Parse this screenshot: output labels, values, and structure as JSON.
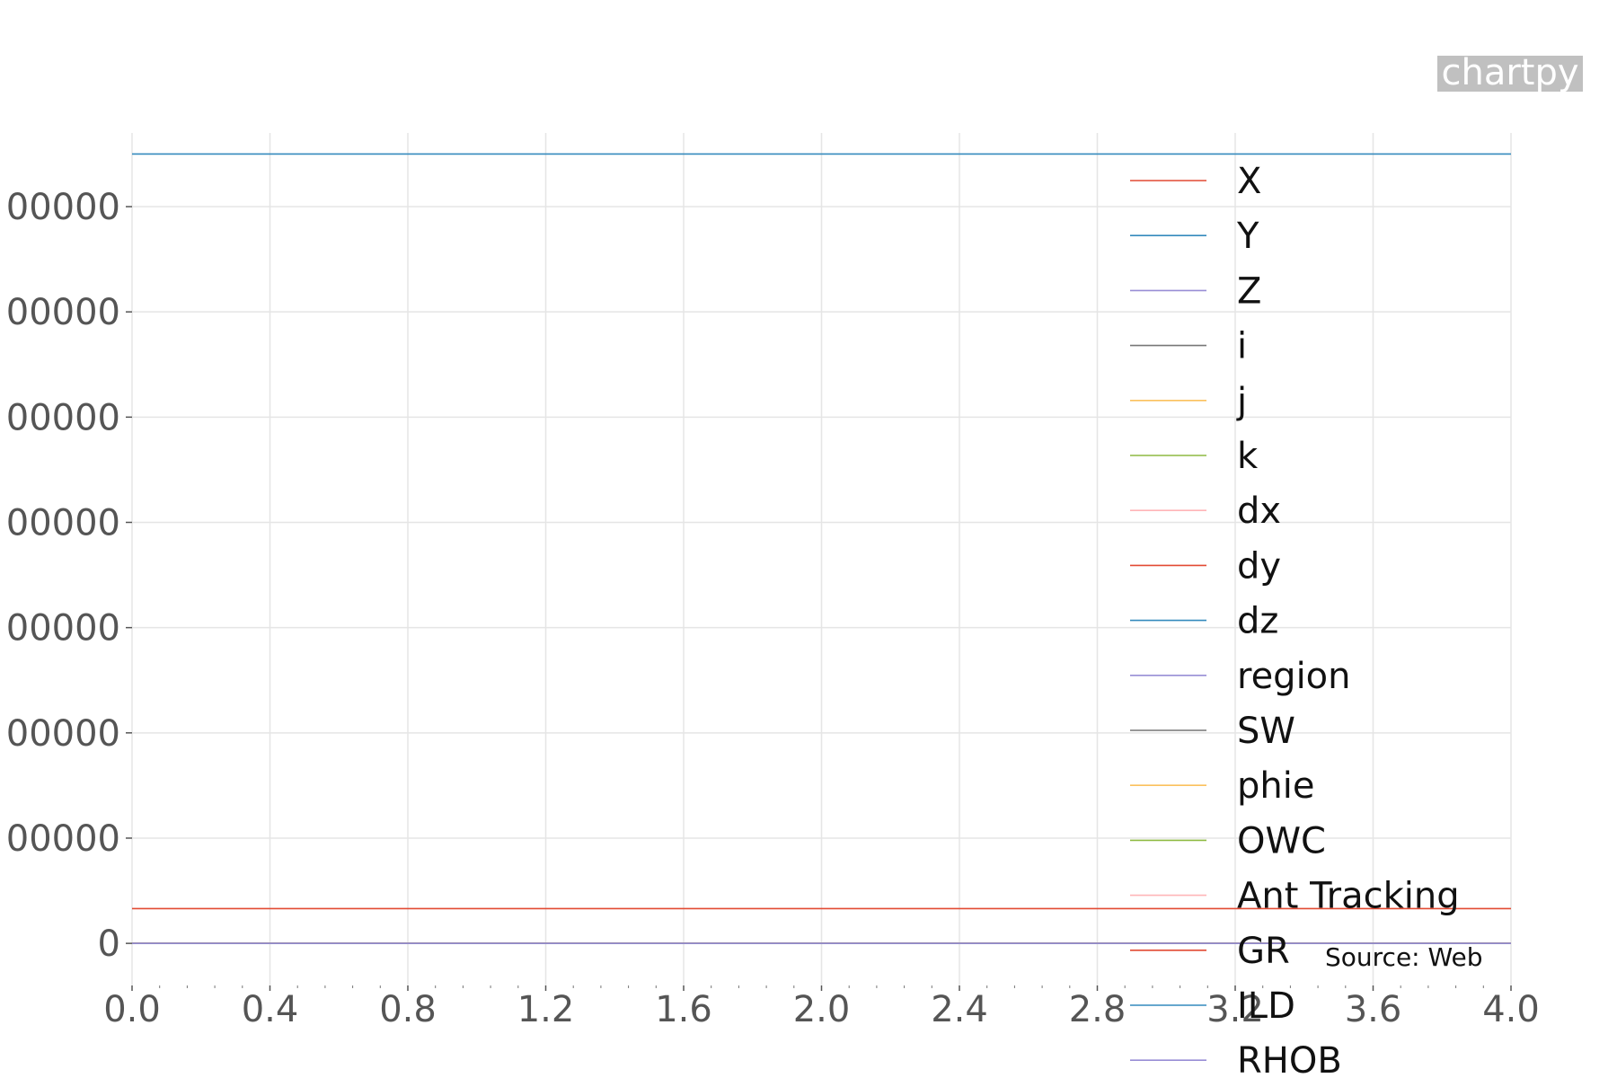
{
  "chart_data": {
    "type": "line",
    "title": "",
    "xlabel": "",
    "ylabel": "",
    "xlim": [
      0.0,
      4.0
    ],
    "ylim": [
      -400000,
      7700000
    ],
    "grid": true,
    "legend_position": "right, overlapping plot",
    "x_ticks": [
      "0.0",
      "0.4",
      "0.8",
      "1.2",
      "1.6",
      "2.0",
      "2.4",
      "2.8",
      "3.2",
      "3.6",
      "4.0"
    ],
    "y_ticks": [
      {
        "value": 0,
        "label": "0"
      },
      {
        "value": 1000000,
        "label": "00000"
      },
      {
        "value": 2000000,
        "label": "00000"
      },
      {
        "value": 3000000,
        "label": "00000"
      },
      {
        "value": 4000000,
        "label": "00000"
      },
      {
        "value": 5000000,
        "label": "00000"
      },
      {
        "value": 6000000,
        "label": "00000"
      },
      {
        "value": 7000000,
        "label": "00000"
      }
    ],
    "x": [
      0.0,
      4.0
    ],
    "series": [
      {
        "name": "X",
        "color": "#e24a33",
        "values": [
          330000,
          330000
        ]
      },
      {
        "name": "Y",
        "color": "#348abd",
        "values": [
          7500000,
          7500000
        ]
      },
      {
        "name": "Z",
        "color": "#988ed5",
        "values": [
          0,
          0
        ]
      },
      {
        "name": "i",
        "color": "#777777",
        "values": [
          0,
          0
        ]
      },
      {
        "name": "j",
        "color": "#fbc15e",
        "values": [
          0,
          0
        ]
      },
      {
        "name": "k",
        "color": "#8eba42",
        "values": [
          0,
          0
        ]
      },
      {
        "name": "dx",
        "color": "#ffb5b8",
        "values": [
          0,
          0
        ]
      },
      {
        "name": "dy",
        "color": "#e24a33",
        "values": [
          0,
          0
        ]
      },
      {
        "name": "dz",
        "color": "#348abd",
        "values": [
          0,
          0
        ]
      },
      {
        "name": "region",
        "color": "#988ed5",
        "values": [
          0,
          0
        ]
      },
      {
        "name": "SW",
        "color": "#777777",
        "values": [
          0,
          0
        ]
      },
      {
        "name": "phie",
        "color": "#fbc15e",
        "values": [
          0,
          0
        ]
      },
      {
        "name": "OWC",
        "color": "#8eba42",
        "values": [
          0,
          0
        ]
      },
      {
        "name": "Ant Tracking",
        "color": "#ffb5b8",
        "values": [
          0,
          0
        ]
      },
      {
        "name": "GR",
        "color": "#e24a33",
        "values": [
          0,
          0
        ]
      },
      {
        "name": "ILD",
        "color": "#348abd",
        "values": [
          0,
          0
        ]
      },
      {
        "name": "RHOB",
        "color": "#988ed5",
        "values": [
          0,
          0
        ]
      }
    ]
  },
  "brand": "chartpy",
  "source": "Source: Web"
}
